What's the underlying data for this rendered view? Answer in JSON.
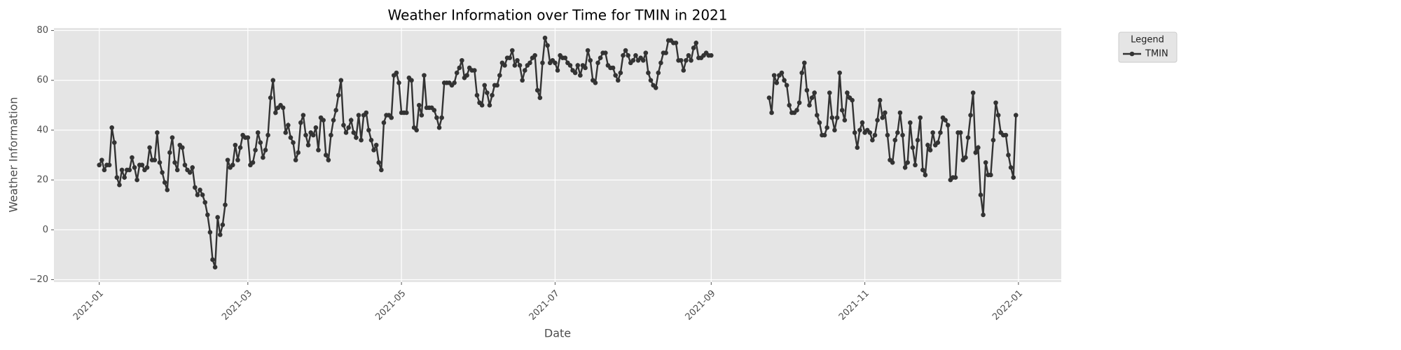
{
  "chart_data": {
    "type": "line",
    "title": "Weather Information over Time for TMIN in 2021",
    "xlabel": "Date",
    "ylabel": "Weather Information",
    "legend_title": "Legend",
    "legend": "outside",
    "grid": true,
    "markers": true,
    "xlim": [
      -18,
      382
    ],
    "ylim": [
      -21,
      81
    ],
    "xticks": [
      {
        "value": 0,
        "label": "2021-01"
      },
      {
        "value": 59,
        "label": "2021-03"
      },
      {
        "value": 120,
        "label": "2021-05"
      },
      {
        "value": 181,
        "label": "2021-07"
      },
      {
        "value": 243,
        "label": "2021-09"
      },
      {
        "value": 304,
        "label": "2021-11"
      },
      {
        "value": 365,
        "label": "2022-01"
      }
    ],
    "yticks": [
      {
        "value": -20,
        "label": "−20"
      },
      0,
      20,
      40,
      60,
      80
    ],
    "x": [
      0,
      1,
      2,
      3,
      4,
      5,
      6,
      7,
      8,
      9,
      10,
      11,
      12,
      13,
      14,
      15,
      16,
      17,
      18,
      19,
      20,
      21,
      22,
      23,
      24,
      25,
      26,
      27,
      28,
      29,
      30,
      31,
      32,
      33,
      34,
      35,
      36,
      37,
      38,
      39,
      40,
      41,
      42,
      43,
      44,
      45,
      46,
      47,
      48,
      49,
      50,
      51,
      52,
      53,
      54,
      55,
      56,
      57,
      58,
      59,
      60,
      61,
      62,
      63,
      64,
      65,
      66,
      67,
      68,
      69,
      70,
      71,
      72,
      73,
      74,
      75,
      76,
      77,
      78,
      79,
      80,
      81,
      82,
      83,
      84,
      85,
      86,
      87,
      88,
      89,
      90,
      91,
      92,
      93,
      94,
      95,
      96,
      97,
      98,
      99,
      100,
      101,
      102,
      103,
      104,
      105,
      106,
      107,
      108,
      109,
      110,
      111,
      112,
      113,
      114,
      115,
      116,
      117,
      118,
      119,
      120,
      121,
      122,
      123,
      124,
      125,
      126,
      127,
      128,
      129,
      130,
      131,
      132,
      133,
      134,
      135,
      136,
      137,
      138,
      139,
      140,
      141,
      142,
      143,
      144,
      145,
      146,
      147,
      148,
      149,
      150,
      151,
      152,
      153,
      154,
      155,
      156,
      157,
      158,
      159,
      160,
      161,
      162,
      163,
      164,
      165,
      166,
      167,
      168,
      169,
      170,
      171,
      172,
      173,
      174,
      175,
      176,
      177,
      178,
      179,
      180,
      181,
      182,
      183,
      184,
      185,
      186,
      187,
      188,
      189,
      190,
      191,
      192,
      193,
      194,
      195,
      196,
      197,
      198,
      199,
      200,
      201,
      202,
      203,
      204,
      205,
      206,
      207,
      208,
      209,
      210,
      211,
      212,
      213,
      214,
      215,
      216,
      217,
      218,
      219,
      220,
      221,
      222,
      223,
      224,
      225,
      226,
      227,
      228,
      229,
      230,
      231,
      232,
      233,
      234,
      235,
      236,
      237,
      238,
      239,
      240,
      241,
      242,
      243,
      244,
      245,
      246,
      247,
      248,
      249,
      250,
      251,
      252,
      253,
      254,
      255,
      256,
      257,
      258,
      259,
      260,
      261,
      262,
      263,
      264,
      265,
      266,
      267,
      268,
      269,
      270,
      271,
      272,
      273,
      274,
      275,
      276,
      277,
      278,
      279,
      280,
      281,
      282,
      283,
      284,
      285,
      286,
      287,
      288,
      289,
      290,
      291,
      292,
      293,
      294,
      295,
      296,
      297,
      298,
      299,
      300,
      301,
      302,
      303,
      304,
      305,
      306,
      307,
      308,
      309,
      310,
      311,
      312,
      313,
      314,
      315,
      316,
      317,
      318,
      319,
      320,
      321,
      322,
      323,
      324,
      325,
      326,
      327,
      328,
      329,
      330,
      331,
      332,
      333,
      334,
      335,
      336,
      337,
      338,
      339,
      340,
      341,
      342,
      343,
      344,
      345,
      346,
      347,
      348,
      349,
      350,
      351,
      352,
      353,
      354,
      355,
      356,
      357,
      358,
      359,
      360,
      361,
      362,
      363,
      364
    ],
    "series": [
      {
        "name": "TMIN",
        "color": "#333333",
        "values": [
          26,
          28,
          24,
          26,
          26,
          41,
          35,
          21,
          18,
          24,
          21,
          24,
          24,
          29,
          25,
          20,
          26,
          26,
          24,
          25,
          33,
          28,
          28,
          39,
          27,
          23,
          19,
          16,
          31,
          37,
          27,
          24,
          34,
          33,
          26,
          24,
          23,
          25,
          17,
          14,
          16,
          14,
          11,
          6,
          -1,
          -12,
          -15,
          5,
          -2,
          2,
          10,
          28,
          25,
          26,
          34,
          28,
          33,
          38,
          37,
          37,
          26,
          27,
          32,
          39,
          35,
          29,
          32,
          38,
          53,
          60,
          47,
          49,
          50,
          49,
          39,
          42,
          37,
          35,
          28,
          31,
          43,
          46,
          38,
          34,
          39,
          38,
          41,
          32,
          45,
          44,
          30,
          28,
          38,
          44,
          48,
          54,
          60,
          42,
          39,
          41,
          44,
          39,
          37,
          46,
          36,
          46,
          47,
          40,
          36,
          32,
          34,
          27,
          24,
          43,
          46,
          46,
          45,
          62,
          63,
          59,
          47,
          47,
          47,
          61,
          60,
          41,
          40,
          50,
          46,
          62,
          49,
          49,
          49,
          48,
          45,
          41,
          45,
          59,
          59,
          59,
          58,
          59,
          63,
          65,
          68,
          61,
          62,
          65,
          64,
          64,
          54,
          51,
          50,
          58,
          55,
          50,
          54,
          58,
          58,
          62,
          67,
          66,
          69,
          69,
          72,
          66,
          68,
          66,
          60,
          64,
          66,
          67,
          69,
          70,
          56,
          53,
          67,
          77,
          74,
          67,
          68,
          67,
          64,
          70,
          69,
          69,
          67,
          66,
          64,
          63,
          66,
          62,
          66,
          65,
          72,
          68,
          60,
          59,
          67,
          69,
          71,
          71,
          66,
          65,
          65,
          62,
          60,
          63,
          70,
          72,
          70,
          67,
          68,
          70,
          68,
          69,
          68,
          71,
          63,
          60,
          58,
          57,
          63,
          67,
          71,
          71,
          76,
          76,
          75,
          75,
          68,
          68,
          64,
          68,
          70,
          68,
          73,
          75,
          69,
          69,
          70,
          71,
          70,
          70,
          null,
          null,
          null,
          null,
          null,
          null,
          null,
          null,
          null,
          null,
          null,
          null,
          null,
          null,
          null,
          null,
          null,
          null,
          null,
          null,
          null,
          null,
          53,
          47,
          62,
          59,
          62,
          63,
          60,
          58,
          50,
          47,
          47,
          48,
          51,
          63,
          67,
          56,
          50,
          53,
          55,
          46,
          43,
          38,
          38,
          41,
          55,
          45,
          40,
          45,
          63,
          48,
          44,
          55,
          53,
          52,
          39,
          33,
          40,
          43,
          39,
          40,
          39,
          36,
          38,
          44,
          52,
          45,
          47,
          38,
          28,
          27,
          36,
          39,
          47,
          38,
          25,
          27,
          43,
          33,
          26,
          36,
          45,
          24,
          22,
          34,
          32,
          39,
          34,
          35,
          39,
          45,
          44,
          42,
          20,
          21,
          21,
          39,
          39,
          28,
          29,
          37,
          46,
          55,
          31,
          33,
          14,
          6,
          27,
          22,
          22,
          36,
          51,
          46,
          39,
          38,
          38,
          30,
          25,
          21,
          46
        ]
      }
    ]
  }
}
